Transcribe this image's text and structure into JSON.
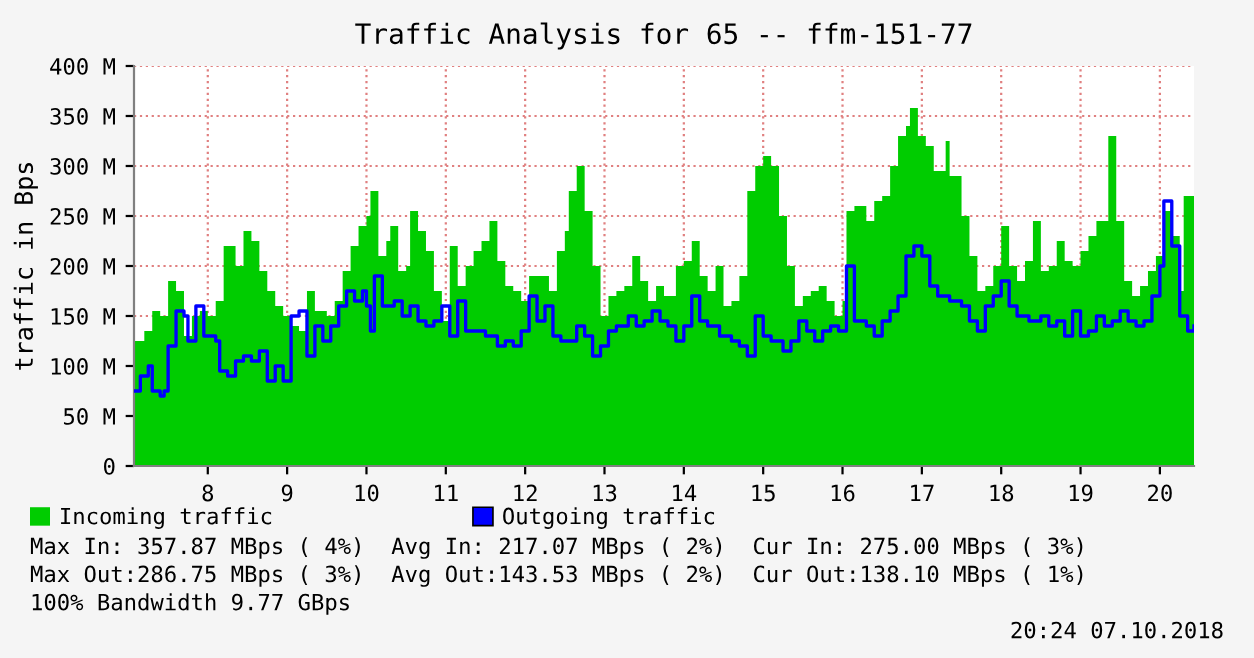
{
  "chart_data": {
    "type": "area",
    "title": "Traffic Analysis for 65 -- ffm-151-77",
    "ylabel": "traffic in Bps",
    "xlim": [
      7.07,
      20.43
    ],
    "xticks": [
      8,
      9,
      10,
      11,
      12,
      13,
      14,
      15,
      16,
      17,
      18,
      19,
      20
    ],
    "ylim": [
      0,
      400
    ],
    "yticks": [
      0,
      {
        "value": 50,
        "label": "50 M"
      },
      {
        "value": 100,
        "label": "100 M"
      },
      {
        "value": 150,
        "label": "150 M"
      },
      {
        "value": 200,
        "label": "200 M"
      },
      {
        "value": 250,
        "label": "250 M"
      },
      {
        "value": 300,
        "label": "300 M"
      },
      {
        "value": 350,
        "label": "350 M"
      },
      {
        "value": 400,
        "label": "400 M"
      }
    ],
    "grid": true,
    "legend": "bottom",
    "series": [
      {
        "name": "Incoming traffic",
        "color": "#00cc00",
        "x": [
          7.07,
          7.2,
          7.3,
          7.4,
          7.5,
          7.6,
          7.7,
          7.8,
          7.9,
          8.0,
          8.1,
          8.2,
          8.35,
          8.45,
          8.55,
          8.65,
          8.75,
          8.85,
          8.95,
          9.05,
          9.15,
          9.25,
          9.35,
          9.5,
          9.6,
          9.7,
          9.8,
          9.9,
          10.0,
          10.05,
          10.15,
          10.25,
          10.3,
          10.4,
          10.5,
          10.55,
          10.65,
          10.75,
          10.85,
          10.95,
          11.05,
          11.15,
          11.25,
          11.35,
          11.45,
          11.55,
          11.65,
          11.75,
          11.85,
          11.95,
          12.05,
          12.2,
          12.3,
          12.4,
          12.5,
          12.55,
          12.65,
          12.75,
          12.85,
          12.95,
          13.05,
          13.15,
          13.25,
          13.35,
          13.45,
          13.55,
          13.65,
          13.75,
          13.9,
          14.0,
          14.1,
          14.2,
          14.3,
          14.4,
          14.5,
          14.6,
          14.7,
          14.8,
          14.9,
          15.0,
          15.1,
          15.2,
          15.3,
          15.4,
          15.5,
          15.6,
          15.7,
          15.8,
          15.9,
          16.0,
          16.05,
          16.15,
          16.3,
          16.4,
          16.5,
          16.6,
          16.7,
          16.8,
          16.85,
          16.95,
          17.05,
          17.15,
          17.3,
          17.35,
          17.5,
          17.6,
          17.7,
          17.8,
          17.9,
          18.0,
          18.1,
          18.2,
          18.3,
          18.4,
          18.5,
          18.6,
          18.7,
          18.8,
          18.9,
          19.0,
          19.1,
          19.2,
          19.35,
          19.45,
          19.55,
          19.65,
          19.75,
          19.85,
          19.95,
          20.05,
          20.15,
          20.25,
          20.3,
          20.43
        ],
        "values": [
          125,
          135,
          155,
          150,
          185,
          175,
          130,
          150,
          155,
          150,
          165,
          220,
          200,
          235,
          225,
          195,
          175,
          160,
          150,
          140,
          135,
          175,
          155,
          150,
          165,
          195,
          220,
          240,
          250,
          275,
          210,
          225,
          240,
          195,
          200,
          255,
          235,
          215,
          175,
          145,
          220,
          180,
          200,
          215,
          225,
          245,
          205,
          180,
          175,
          165,
          190,
          190,
          175,
          215,
          235,
          275,
          300,
          255,
          200,
          150,
          170,
          175,
          180,
          210,
          185,
          165,
          180,
          170,
          200,
          205,
          225,
          190,
          175,
          200,
          160,
          165,
          190,
          275,
          300,
          310,
          300,
          250,
          200,
          160,
          170,
          175,
          180,
          165,
          150,
          165,
          255,
          260,
          245,
          265,
          270,
          300,
          330,
          340,
          358,
          330,
          320,
          295,
          325,
          290,
          250,
          210,
          175,
          180,
          200,
          240,
          200,
          185,
          205,
          245,
          195,
          200,
          225,
          205,
          200,
          215,
          230,
          245,
          330,
          245,
          185,
          170,
          180,
          195,
          210,
          255,
          230,
          175,
          270,
          275
        ]
      },
      {
        "name": "Outgoing traffic",
        "type": "step",
        "color": "#0000ff",
        "x": [
          7.07,
          7.15,
          7.25,
          7.3,
          7.4,
          7.45,
          7.5,
          7.6,
          7.7,
          7.75,
          7.85,
          7.95,
          8.1,
          8.15,
          8.25,
          8.35,
          8.45,
          8.55,
          8.65,
          8.75,
          8.85,
          8.95,
          9.05,
          9.15,
          9.25,
          9.35,
          9.45,
          9.55,
          9.65,
          9.75,
          9.85,
          9.95,
          10.0,
          10.05,
          10.1,
          10.2,
          10.35,
          10.45,
          10.55,
          10.65,
          10.75,
          10.85,
          10.95,
          11.05,
          11.15,
          11.25,
          11.35,
          11.5,
          11.65,
          11.75,
          11.85,
          11.95,
          12.05,
          12.15,
          12.25,
          12.35,
          12.45,
          12.55,
          12.65,
          12.75,
          12.85,
          12.95,
          13.05,
          13.15,
          13.3,
          13.4,
          13.5,
          13.6,
          13.7,
          13.8,
          13.9,
          14.0,
          14.1,
          14.2,
          14.3,
          14.45,
          14.6,
          14.7,
          14.8,
          14.9,
          15.0,
          15.1,
          15.25,
          15.35,
          15.45,
          15.55,
          15.65,
          15.75,
          15.85,
          15.95,
          16.05,
          16.15,
          16.3,
          16.4,
          16.5,
          16.6,
          16.7,
          16.8,
          16.9,
          17.0,
          17.1,
          17.2,
          17.35,
          17.5,
          17.6,
          17.7,
          17.8,
          17.9,
          18.0,
          18.1,
          18.2,
          18.35,
          18.5,
          18.6,
          18.7,
          18.8,
          18.9,
          19.0,
          19.1,
          19.2,
          19.3,
          19.4,
          19.5,
          19.6,
          19.7,
          19.8,
          19.9,
          20.0,
          20.05,
          20.15,
          20.25,
          20.35,
          20.43
        ],
        "values": [
          75,
          90,
          100,
          75,
          70,
          75,
          120,
          155,
          150,
          125,
          160,
          130,
          125,
          95,
          90,
          105,
          110,
          105,
          115,
          85,
          100,
          85,
          150,
          155,
          110,
          140,
          125,
          140,
          160,
          175,
          165,
          175,
          160,
          135,
          190,
          160,
          165,
          150,
          160,
          145,
          140,
          145,
          160,
          130,
          165,
          135,
          135,
          130,
          120,
          125,
          120,
          135,
          170,
          145,
          160,
          130,
          125,
          125,
          140,
          130,
          110,
          120,
          135,
          140,
          150,
          140,
          145,
          155,
          145,
          140,
          125,
          140,
          170,
          145,
          140,
          130,
          125,
          120,
          110,
          150,
          130,
          125,
          115,
          125,
          145,
          135,
          125,
          135,
          140,
          135,
          200,
          145,
          140,
          130,
          145,
          155,
          170,
          210,
          220,
          210,
          180,
          170,
          165,
          160,
          145,
          135,
          160,
          170,
          185,
          160,
          150,
          145,
          150,
          140,
          145,
          130,
          155,
          130,
          135,
          150,
          140,
          145,
          155,
          145,
          140,
          145,
          170,
          200,
          265,
          220,
          150,
          135,
          140
        ]
      }
    ],
    "annotations": [
      "Max In: 357.87 MBps ( 4%)  Avg In: 217.07 MBps ( 2%)  Cur In: 275.00 MBps ( 3%)",
      "Max Out:286.75 MBps ( 3%)  Avg Out:143.53 MBps ( 2%)  Cur Out:138.10 MBps ( 1%)",
      "100% Bandwidth 9.77 GBps",
      "20:24 07.10.2018"
    ]
  }
}
